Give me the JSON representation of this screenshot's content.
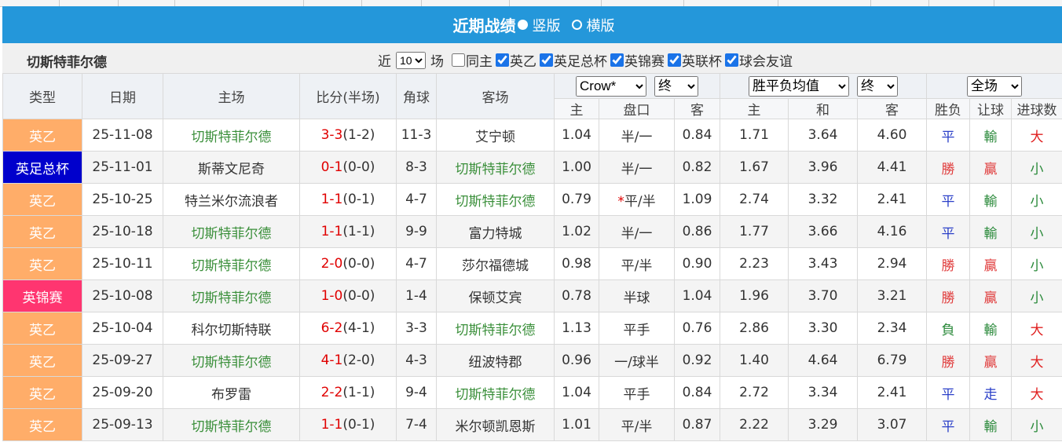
{
  "header": {
    "title": "近期战绩",
    "options": [
      {
        "label": "竖版",
        "selected": true
      },
      {
        "label": "横版",
        "selected": false
      }
    ]
  },
  "toolbar": {
    "team": "切斯特菲尔德",
    "recent_prefix": "近",
    "recent_count": "10",
    "recent_suffix": "场",
    "filters": [
      {
        "label": "同主",
        "checked": false
      },
      {
        "label": "英乙",
        "checked": true
      },
      {
        "label": "英足总杯",
        "checked": true
      },
      {
        "label": "英锦赛",
        "checked": true
      },
      {
        "label": "英联杯",
        "checked": true
      },
      {
        "label": "球会友谊",
        "checked": true
      }
    ]
  },
  "table": {
    "columns": [
      "类型",
      "日期",
      "主场",
      "比分(半场)",
      "角球",
      "客场"
    ],
    "odds_company": "Crow*",
    "odds_phase": "终",
    "avg_type": "胜平负均值",
    "avg_phase": "终",
    "range": "全场",
    "sub_columns": [
      "主",
      "盘口",
      "客",
      "主",
      "和",
      "客",
      "胜负",
      "让球",
      "进球数"
    ],
    "rows": [
      {
        "type": "英乙",
        "date": "25-11-08",
        "home": "切斯特菲尔德",
        "score": "3-3",
        "half": "(1-2)",
        "corners": "11-3",
        "away": "艾宁顿",
        "odds_home": "1.04",
        "handicap": "半/一",
        "odds_away": "0.84",
        "avg_home": "1.71",
        "avg_draw": "3.64",
        "avg_away": "4.60",
        "result": "平",
        "handicap_result": "輸",
        "goals": "大"
      },
      {
        "type": "英足总杯",
        "date": "25-11-01",
        "home": "斯蒂文尼奇",
        "score": "0-1",
        "half": "(0-0)",
        "corners": "8-3",
        "away": "切斯特菲尔德",
        "odds_home": "1.00",
        "handicap": "半/一",
        "odds_away": "0.82",
        "avg_home": "1.67",
        "avg_draw": "3.96",
        "avg_away": "4.41",
        "result": "勝",
        "handicap_result": "贏",
        "goals": "小"
      },
      {
        "type": "英乙",
        "date": "25-10-25",
        "home": "特兰米尔流浪者",
        "score": "1-1",
        "half": "(0-1)",
        "corners": "4-7",
        "away": "切斯特菲尔德",
        "odds_home": "0.79",
        "handicap_flag": "*",
        "handicap": "平/半",
        "odds_away": "1.09",
        "avg_home": "2.74",
        "avg_draw": "3.32",
        "avg_away": "2.41",
        "result": "平",
        "handicap_result": "輸",
        "goals": "小"
      },
      {
        "type": "英乙",
        "date": "25-10-18",
        "home": "切斯特菲尔德",
        "score": "1-1",
        "half": "(1-1)",
        "corners": "9-9",
        "away": "富力特城",
        "odds_home": "1.02",
        "handicap": "半/一",
        "odds_away": "0.86",
        "avg_home": "1.77",
        "avg_draw": "3.66",
        "avg_away": "4.16",
        "result": "平",
        "handicap_result": "輸",
        "goals": "小"
      },
      {
        "type": "英乙",
        "date": "25-10-11",
        "home": "切斯特菲尔德",
        "score": "2-0",
        "half": "(0-0)",
        "corners": "4-7",
        "away": "莎尔福德城",
        "odds_home": "0.98",
        "handicap": "平/半",
        "odds_away": "0.90",
        "avg_home": "2.23",
        "avg_draw": "3.43",
        "avg_away": "2.94",
        "result": "勝",
        "handicap_result": "贏",
        "goals": "小"
      },
      {
        "type": "英锦赛",
        "date": "25-10-08",
        "home": "切斯特菲尔德",
        "score": "1-0",
        "half": "(0-0)",
        "corners": "1-4",
        "away": "保顿艾宾",
        "odds_home": "0.78",
        "handicap": "半球",
        "odds_away": "1.04",
        "avg_home": "1.96",
        "avg_draw": "3.70",
        "avg_away": "3.21",
        "result": "勝",
        "handicap_result": "贏",
        "goals": "小"
      },
      {
        "type": "英乙",
        "date": "25-10-04",
        "home": "科尔切斯特联",
        "score": "6-2",
        "half": "(4-1)",
        "corners": "3-3",
        "away": "切斯特菲尔德",
        "odds_home": "1.13",
        "handicap": "平手",
        "odds_away": "0.76",
        "avg_home": "2.86",
        "avg_draw": "3.30",
        "avg_away": "2.34",
        "result": "負",
        "handicap_result": "輸",
        "goals": "大"
      },
      {
        "type": "英乙",
        "date": "25-09-27",
        "home": "切斯特菲尔德",
        "score": "4-1",
        "half": "(2-0)",
        "corners": "4-3",
        "away": "纽波特郡",
        "odds_home": "0.96",
        "handicap": "一/球半",
        "odds_away": "0.92",
        "avg_home": "1.40",
        "avg_draw": "4.64",
        "avg_away": "6.79",
        "result": "勝",
        "handicap_result": "贏",
        "goals": "大"
      },
      {
        "type": "英乙",
        "date": "25-09-20",
        "home": "布罗雷",
        "score": "2-2",
        "half": "(1-1)",
        "corners": "9-4",
        "away": "切斯特菲尔德",
        "odds_home": "1.04",
        "handicap": "平手",
        "odds_away": "0.84",
        "avg_home": "2.72",
        "avg_draw": "3.34",
        "avg_away": "2.41",
        "result": "平",
        "handicap_result": "走",
        "goals": "大"
      },
      {
        "type": "英乙",
        "date": "25-09-13",
        "home": "切斯特菲尔德",
        "score": "1-1",
        "half": "(0-1)",
        "corners": "7-4",
        "away": "米尔顿凯恩斯",
        "odds_home": "1.01",
        "handicap": "平/半",
        "odds_away": "0.87",
        "avg_home": "2.22",
        "avg_draw": "3.29",
        "avg_away": "3.07",
        "result": "平",
        "handicap_result": "輸",
        "goals": "小"
      }
    ]
  },
  "styles": {
    "type_colors": {
      "英乙": "#ffad69",
      "英足总杯": "#0000cc",
      "英锦赛": "#ff3570"
    },
    "mark_colors": {
      "平": "#2a3fc8",
      "勝": "#e03c3c",
      "負": "#2b8a3b",
      "輸": "#2b8a3b",
      "贏": "#e03c3c",
      "走": "#2a3fc8",
      "大": "#e02020",
      "小": "#2b8a3b"
    },
    "team_color": "#3a8f3a",
    "score_color": "#e00000",
    "flag_color": "#e00000"
  }
}
